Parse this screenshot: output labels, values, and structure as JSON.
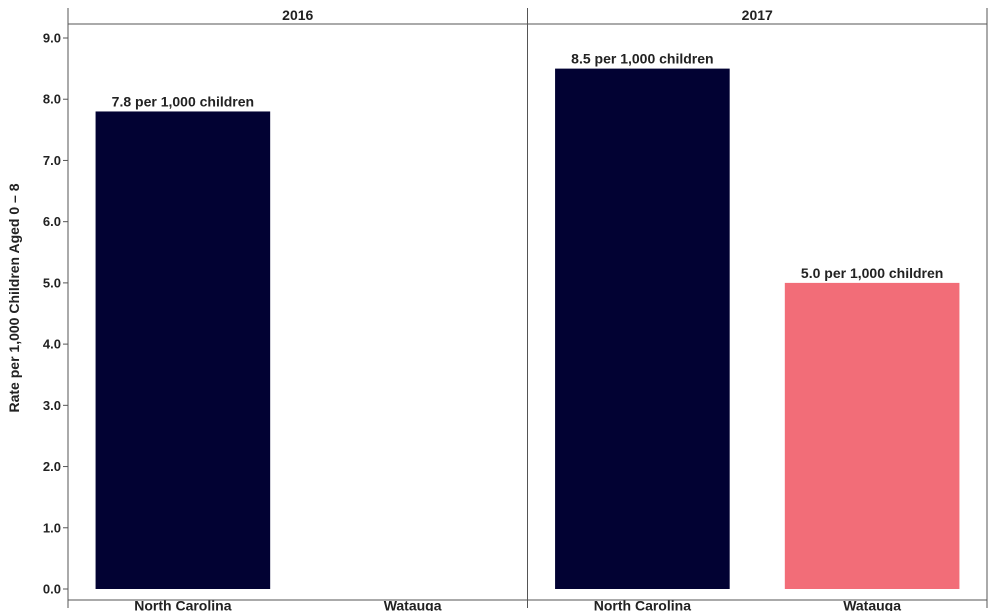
{
  "chart_data": {
    "type": "bar",
    "ylabel": "Rate per 1,000 Children Aged 0 – 8",
    "ylim": [
      0,
      9.0
    ],
    "yticks": [
      "0.0",
      "1.0",
      "2.0",
      "3.0",
      "4.0",
      "5.0",
      "6.0",
      "7.0",
      "8.0",
      "9.0"
    ],
    "categories": [
      "North Carolina",
      "Watauga"
    ],
    "colors": {
      "North Carolina": "#020233",
      "Watauga": "#f26d78"
    },
    "grid": false,
    "panels": [
      {
        "title": "2016",
        "bars": [
          {
            "category": "North Carolina",
            "value": 7.8,
            "label": "7.8 per 1,000 children"
          },
          {
            "category": "Watauga",
            "value": null,
            "label": ""
          }
        ]
      },
      {
        "title": "2017",
        "bars": [
          {
            "category": "North Carolina",
            "value": 8.5,
            "label": "8.5 per 1,000 children"
          },
          {
            "category": "Watauga",
            "value": 5.0,
            "label": "5.0 per 1,000 children"
          }
        ]
      }
    ]
  }
}
